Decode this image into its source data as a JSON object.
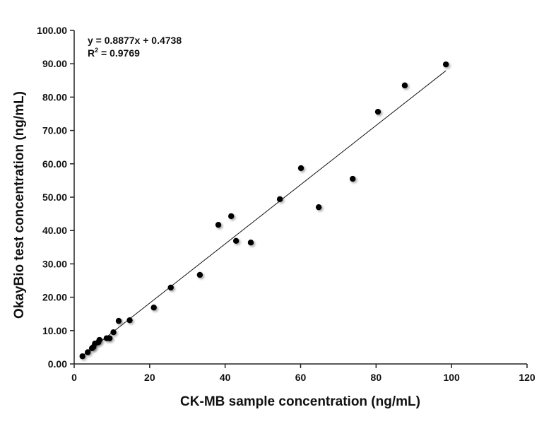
{
  "chart_data": {
    "type": "scatter",
    "xlabel": "CK-MB sample concentration (ng/mL)",
    "ylabel": "OkayBio test concentration (ng/mL)",
    "xlim": [
      0,
      120
    ],
    "ylim": [
      0,
      100
    ],
    "xticks": [
      "0",
      "20",
      "40",
      "60",
      "80",
      "100",
      "120"
    ],
    "yticks": [
      "0.00",
      "10.00",
      "20.00",
      "30.00",
      "40.00",
      "50.00",
      "60.00",
      "70.00",
      "80.00",
      "90.00",
      "100.00"
    ],
    "grid": false,
    "marker_color": "#000000",
    "trendline": {
      "slope": 0.8877,
      "intercept": 0.4738,
      "equation": "y = 0.8877x + 0.4738",
      "r2_label": "R",
      "r2_value": " = 0.9769"
    },
    "points": [
      [
        2.2,
        2.3
      ],
      [
        3.6,
        3.5
      ],
      [
        4.7,
        4.7
      ],
      [
        5.1,
        5.1
      ],
      [
        5.5,
        6.1
      ],
      [
        6.4,
        6.5
      ],
      [
        6.7,
        7.2
      ],
      [
        8.6,
        7.7
      ],
      [
        9.4,
        7.7
      ],
      [
        10.4,
        9.5
      ],
      [
        11.8,
        12.9
      ],
      [
        14.7,
        13.1
      ],
      [
        21.1,
        16.9
      ],
      [
        25.6,
        22.9
      ],
      [
        33.3,
        26.7
      ],
      [
        38.2,
        41.7
      ],
      [
        41.6,
        44.3
      ],
      [
        42.9,
        36.9
      ],
      [
        46.8,
        36.4
      ],
      [
        54.5,
        49.4
      ],
      [
        60.1,
        58.7
      ],
      [
        64.8,
        47.0
      ],
      [
        73.8,
        55.5
      ],
      [
        80.5,
        75.6
      ],
      [
        87.6,
        83.5
      ],
      [
        98.5,
        89.8
      ]
    ]
  }
}
